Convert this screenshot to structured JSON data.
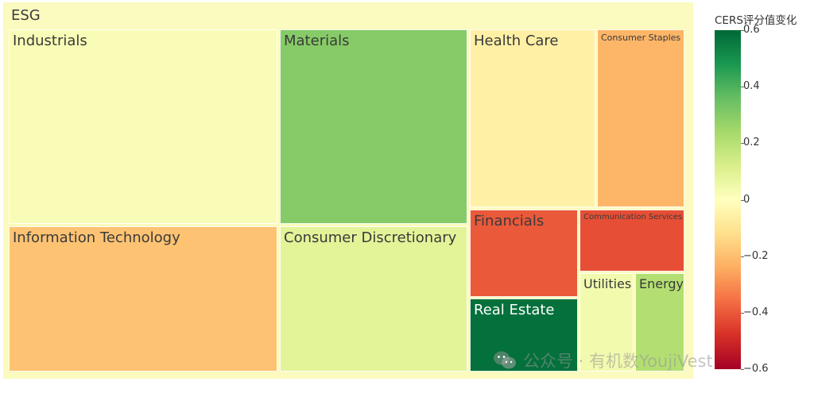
{
  "chart_data": {
    "type": "treemap",
    "root": "ESG",
    "colorbar_title": "CERS评分值变化",
    "colorbar_range": [
      -0.6,
      0.6
    ],
    "colorbar_ticks": [
      "0.6",
      "0.4",
      "0.2",
      "0",
      "−0.2",
      "−0.4",
      "−0.6"
    ],
    "colorbar_tick_values": [
      0.6,
      0.4,
      0.2,
      0,
      -0.2,
      -0.4,
      -0.6
    ],
    "colorscale": [
      "#a50026",
      "#d73027",
      "#f46d43",
      "#fdae61",
      "#fee08b",
      "#ffffbf",
      "#d9ef8b",
      "#a6d96a",
      "#66bd63",
      "#1a9850",
      "#006837"
    ],
    "sectors": [
      {
        "name": "Industrials",
        "change": 0.02
      },
      {
        "name": "Materials",
        "change": 0.3
      },
      {
        "name": "Health Care",
        "change": -0.06
      },
      {
        "name": "Consumer Staples",
        "change": -0.22
      },
      {
        "name": "Information Technology",
        "change": -0.19
      },
      {
        "name": "Consumer Discretionary",
        "change": 0.09
      },
      {
        "name": "Financials",
        "change": -0.4
      },
      {
        "name": "Communication Services",
        "change": -0.42
      },
      {
        "name": "Utilities",
        "change": 0.04
      },
      {
        "name": "Energy",
        "change": 0.21
      },
      {
        "name": "Real Estate",
        "change": 0.58
      }
    ]
  },
  "watermark": "公众号 · 有机数YoujiVest"
}
